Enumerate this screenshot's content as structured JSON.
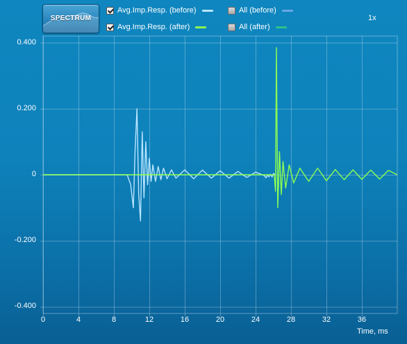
{
  "toolbar": {
    "spectrum_label": "SPECTRUM",
    "zoom": "1x",
    "legend": [
      {
        "label": "Avg.Imp.Resp. (before)",
        "checked": true,
        "color": "#b9e6ff"
      },
      {
        "label": "All (before)",
        "checked": false,
        "color": "#6aa6e6"
      },
      {
        "label": "Avg.Imp.Resp. (after)",
        "checked": true,
        "color": "#8dff52"
      },
      {
        "label": "All (after)",
        "checked": false,
        "color": "#2ec08c"
      }
    ]
  },
  "chart_data": {
    "type": "line",
    "xlabel": "Time, ms",
    "ylabel": "",
    "xlim": [
      0,
      40
    ],
    "ylim": [
      -0.42,
      0.42
    ],
    "x_ticks": [
      "0",
      "4",
      "8",
      "12",
      "16",
      "20",
      "24",
      "28",
      "32",
      "36"
    ],
    "y_ticks": [
      "0.400",
      "0.200",
      "0",
      "-0.200",
      "-0.400"
    ],
    "grid": true,
    "legend_position": "top",
    "series": [
      {
        "name": "Avg.Imp.Resp. (before)",
        "color": "#b9e6ff",
        "x": [
          0,
          9.5,
          9.9,
          10.2,
          10.4,
          10.6,
          10.8,
          11.0,
          11.2,
          11.4,
          11.6,
          11.8,
          12.0,
          12.2,
          12.4,
          12.7,
          13.0,
          13.3,
          13.6,
          14.0,
          14.5,
          15,
          16,
          17,
          18,
          19,
          20,
          21,
          22,
          23,
          24,
          25,
          26.2
        ],
        "y": [
          0,
          0,
          -0.03,
          -0.1,
          0.08,
          0.2,
          -0.06,
          -0.14,
          0.13,
          -0.07,
          0.1,
          -0.03,
          0.05,
          -0.02,
          0.03,
          -0.02,
          0.025,
          -0.015,
          0.02,
          -0.012,
          0.015,
          -0.01,
          0.015,
          -0.012,
          0.014,
          -0.01,
          0.012,
          -0.01,
          0.01,
          -0.008,
          0.008,
          -0.006,
          0
        ]
      },
      {
        "name": "Avg.Imp.Resp. (after)",
        "color": "#8dff52",
        "x": [
          0,
          26.1,
          26.25,
          26.35,
          26.5,
          26.7,
          26.9,
          27.1,
          27.4,
          27.8,
          28.3,
          29,
          30,
          31,
          32,
          33,
          34,
          35,
          36,
          37,
          38,
          39,
          40
        ],
        "y": [
          0,
          0,
          -0.05,
          0.385,
          -0.1,
          0.07,
          -0.06,
          0.04,
          -0.04,
          0.03,
          -0.025,
          0.02,
          -0.02,
          0.02,
          -0.018,
          0.016,
          -0.015,
          0.015,
          -0.014,
          0.014,
          -0.013,
          0.013,
          0
        ]
      }
    ]
  }
}
